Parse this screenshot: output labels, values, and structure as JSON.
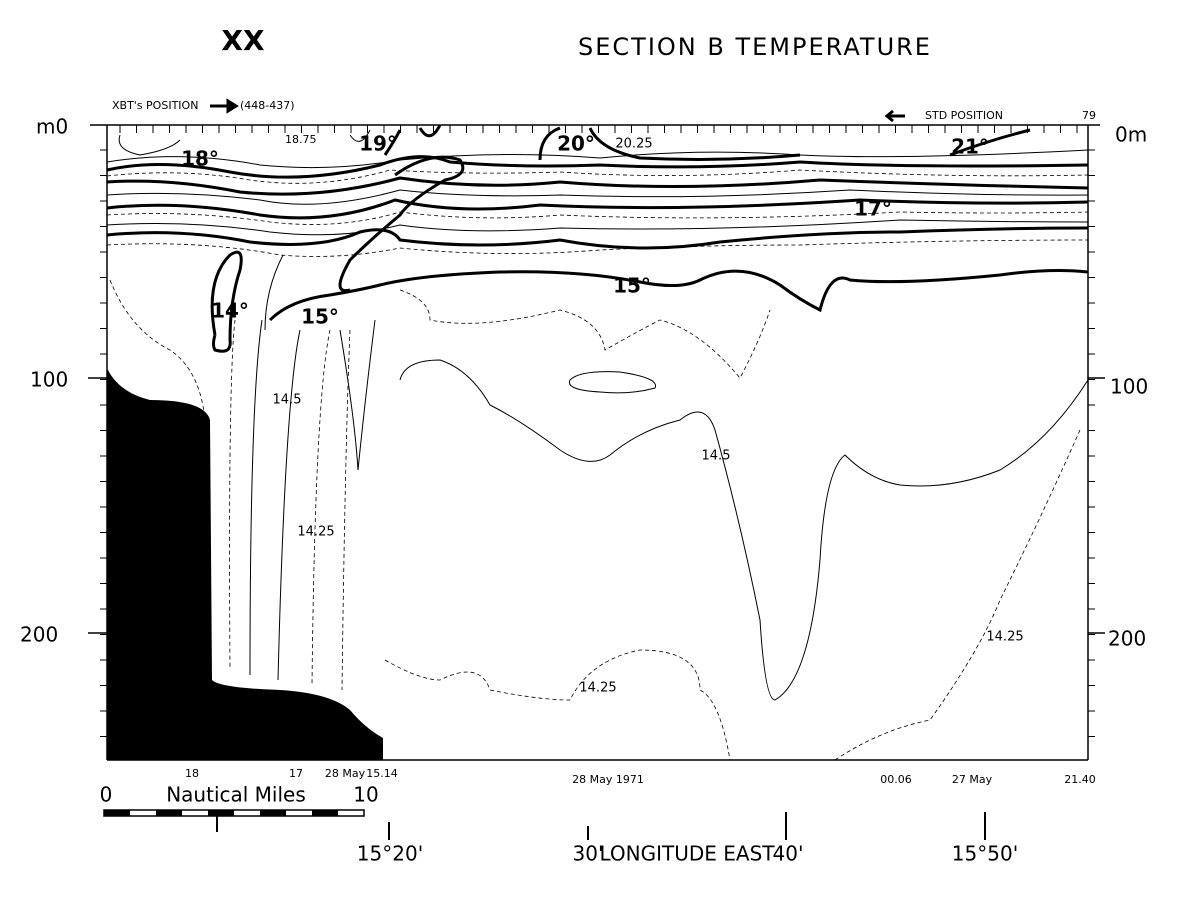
{
  "header": {
    "plate": "XX",
    "title": "SECTION B   TEMPERATURE",
    "xbt_position": "XBT's POSITION",
    "xbt_range": "(448-437)",
    "std_position": "STD POSITION",
    "station": "79"
  },
  "depth_axis": {
    "left": [
      "m0",
      "100",
      "200"
    ],
    "right": [
      "0m",
      "100",
      "200"
    ]
  },
  "contour_labels": [
    "18.75",
    "19°",
    "18°",
    "20°",
    "20.25",
    "21°",
    "17°",
    "14°",
    "15°",
    "15°",
    "14.5",
    "14.25",
    "14.5",
    "14.25",
    "14.25"
  ],
  "time_labels": [
    "18",
    "17",
    "28 May",
    "15.14",
    "28 May  1971",
    "00.06",
    "27 May",
    "21.40"
  ],
  "scale": {
    "start": "0",
    "title": "Nautical Miles",
    "end": "10"
  },
  "longitude": {
    "a": "15°20'",
    "b": "30'",
    "title": "LONGITUDE  EAST",
    "c": "40'",
    "d": "15°50'"
  }
}
